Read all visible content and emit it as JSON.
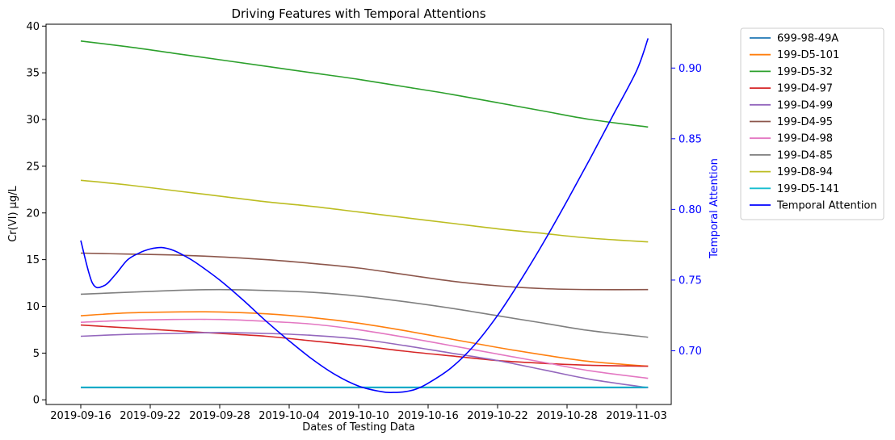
{
  "chart_data": {
    "type": "line",
    "title": "Driving Features with Temporal Attentions",
    "xlabel": "Dates of Testing Data",
    "ylabel": "Cr(VI) μg/L",
    "y2label": "Temporal Attention",
    "xlim": [
      "2019-09-13",
      "2019-11-06"
    ],
    "ylim": [
      -0.5,
      40.2
    ],
    "y2lim": [
      0.662,
      0.931
    ],
    "xticks": [
      "2019-09-16",
      "2019-09-22",
      "2019-09-28",
      "2019-10-04",
      "2019-10-10",
      "2019-10-16",
      "2019-10-22",
      "2019-10-28",
      "2019-11-03"
    ],
    "yticks": [
      0,
      5,
      10,
      15,
      20,
      25,
      30,
      35,
      40
    ],
    "y2ticks": [
      0.7,
      0.75,
      0.8,
      0.85,
      0.9
    ],
    "y2tick_labels": [
      "0.70",
      "0.75",
      "0.80",
      "0.85",
      "0.90"
    ],
    "grid": false,
    "legend_position": "outside-right",
    "x": [
      "2019-09-16",
      "2019-09-20",
      "2019-09-24",
      "2019-09-28",
      "2019-10-02",
      "2019-10-06",
      "2019-10-10",
      "2019-10-14",
      "2019-10-18",
      "2019-10-22",
      "2019-10-26",
      "2019-10-30",
      "2019-11-04"
    ],
    "series": [
      {
        "name": "699-98-49A",
        "color": "#1f77b4",
        "axis": "left",
        "values": [
          1.3,
          1.3,
          1.3,
          1.3,
          1.3,
          1.3,
          1.3,
          1.3,
          1.3,
          1.3,
          1.3,
          1.3,
          1.3
        ]
      },
      {
        "name": "199-D5-101",
        "color": "#ff7f0e",
        "axis": "left",
        "values": [
          9.0,
          9.3,
          9.4,
          9.4,
          9.2,
          8.8,
          8.2,
          7.4,
          6.5,
          5.6,
          4.8,
          4.1,
          3.6
        ]
      },
      {
        "name": "199-D5-32",
        "color": "#2ca02c",
        "axis": "left",
        "values": [
          38.4,
          37.8,
          37.1,
          36.4,
          35.7,
          35.0,
          34.3,
          33.5,
          32.7,
          31.8,
          30.9,
          30.0,
          29.2
        ]
      },
      {
        "name": "199-D4-97",
        "color": "#d62728",
        "axis": "left",
        "values": [
          8.0,
          7.7,
          7.4,
          7.1,
          6.8,
          6.3,
          5.8,
          5.2,
          4.7,
          4.2,
          3.9,
          3.7,
          3.6
        ]
      },
      {
        "name": "199-D4-99",
        "color": "#9467bd",
        "axis": "left",
        "values": [
          6.8,
          7.0,
          7.1,
          7.2,
          7.1,
          6.9,
          6.5,
          5.8,
          5.0,
          4.2,
          3.2,
          2.2,
          1.3
        ]
      },
      {
        "name": "199-D4-95",
        "color": "#8c564b",
        "axis": "left",
        "values": [
          15.7,
          15.6,
          15.5,
          15.3,
          15.0,
          14.6,
          14.1,
          13.4,
          12.7,
          12.2,
          11.9,
          11.8,
          11.8
        ]
      },
      {
        "name": "199-D4-98",
        "color": "#e377c2",
        "axis": "left",
        "values": [
          8.3,
          8.5,
          8.6,
          8.6,
          8.4,
          8.1,
          7.5,
          6.7,
          5.8,
          4.9,
          4.0,
          3.1,
          2.3
        ]
      },
      {
        "name": "199-D4-85",
        "color": "#7f7f7f",
        "axis": "left",
        "values": [
          11.3,
          11.5,
          11.7,
          11.8,
          11.7,
          11.5,
          11.1,
          10.5,
          9.8,
          9.0,
          8.2,
          7.4,
          6.7
        ]
      },
      {
        "name": "199-D8-94",
        "color": "#bcbd22",
        "axis": "left",
        "values": [
          23.5,
          23.0,
          22.4,
          21.8,
          21.2,
          20.7,
          20.1,
          19.5,
          18.9,
          18.3,
          17.8,
          17.3,
          16.9
        ]
      },
      {
        "name": "199-D5-141",
        "color": "#17becf",
        "axis": "left",
        "values": [
          1.35,
          1.35,
          1.35,
          1.35,
          1.35,
          1.35,
          1.35,
          1.35,
          1.35,
          1.35,
          1.35,
          1.35,
          1.35
        ]
      }
    ],
    "attention": {
      "name": "Temporal Attention",
      "color": "#0000ff",
      "axis": "right",
      "x": [
        "2019-09-16",
        "2019-09-17",
        "2019-09-18",
        "2019-09-19",
        "2019-09-20",
        "2019-09-21",
        "2019-09-22",
        "2019-09-23",
        "2019-09-24",
        "2019-09-25",
        "2019-09-26",
        "2019-09-28",
        "2019-09-30",
        "2019-10-02",
        "2019-10-04",
        "2019-10-06",
        "2019-10-08",
        "2019-10-10",
        "2019-10-12",
        "2019-10-13",
        "2019-10-14",
        "2019-10-15",
        "2019-10-16",
        "2019-10-18",
        "2019-10-20",
        "2019-10-22",
        "2019-10-24",
        "2019-10-26",
        "2019-10-28",
        "2019-10-30",
        "2019-11-01",
        "2019-11-03",
        "2019-11-04"
      ],
      "values": [
        0.778,
        0.748,
        0.746,
        0.754,
        0.764,
        0.769,
        0.772,
        0.773,
        0.771,
        0.767,
        0.762,
        0.75,
        0.736,
        0.721,
        0.707,
        0.694,
        0.683,
        0.675,
        0.671,
        0.6705,
        0.671,
        0.673,
        0.677,
        0.688,
        0.704,
        0.725,
        0.75,
        0.777,
        0.806,
        0.836,
        0.867,
        0.898,
        0.921
      ]
    }
  }
}
